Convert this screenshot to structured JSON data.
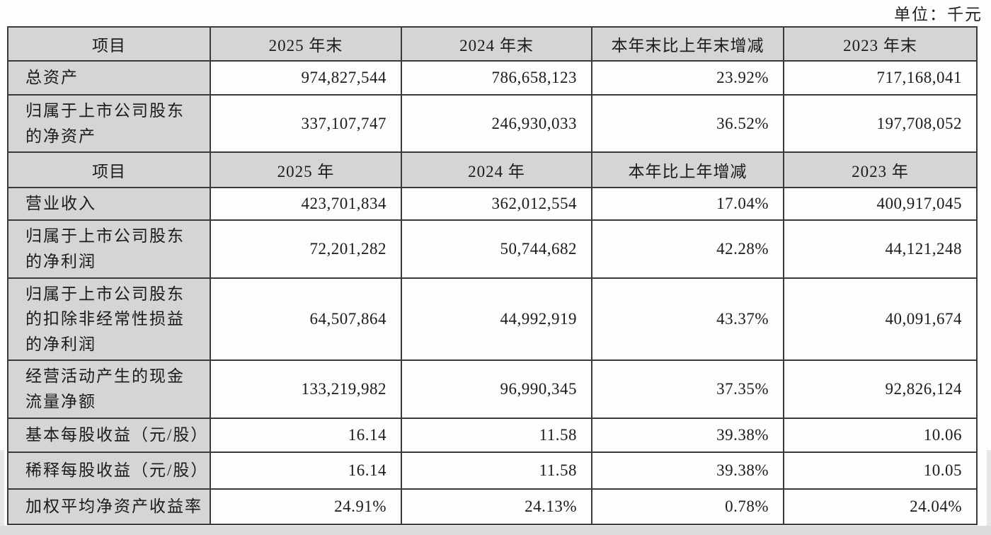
{
  "unit_label": "单位：千元",
  "colors": {
    "header_fill": "#d5d5d5",
    "cell_fill": "#fdfdfd",
    "border": "#3a3a3a",
    "text": "#1b1b1b"
  },
  "sections": [
    {
      "header": [
        "项目",
        "2025 年末",
        "2024 年末",
        "本年末比上年末增减",
        "2023 年末"
      ],
      "rows": [
        [
          "总资产",
          "974,827,544",
          "786,658,123",
          "23.92%",
          "717,168,041"
        ],
        [
          "归属于上市公司股东的净资产",
          "337,107,747",
          "246,930,033",
          "36.52%",
          "197,708,052"
        ]
      ]
    },
    {
      "header": [
        "项目",
        "2025 年",
        "2024 年",
        "本年比上年增减",
        "2023 年"
      ],
      "rows": [
        [
          "营业收入",
          "423,701,834",
          "362,012,554",
          "17.04%",
          "400,917,045"
        ],
        [
          "归属于上市公司股东的净利润",
          "72,201,282",
          "50,744,682",
          "42.28%",
          "44,121,248"
        ],
        [
          "归属于上市公司股东的扣除非经常性损益的净利润",
          "64,507,864",
          "44,992,919",
          "43.37%",
          "40,091,674"
        ],
        [
          "经营活动产生的现金流量净额",
          "133,219,982",
          "96,990,345",
          "37.35%",
          "92,826,124"
        ],
        [
          "基本每股收益（元/股）",
          "16.14",
          "11.58",
          "39.38%",
          "10.06"
        ],
        [
          "稀释每股收益（元/股）",
          "16.14",
          "11.58",
          "39.38%",
          "10.05"
        ],
        [
          "加权平均净资产收益率",
          "24.91%",
          "24.13%",
          "0.78%",
          "24.04%"
        ]
      ]
    }
  ]
}
